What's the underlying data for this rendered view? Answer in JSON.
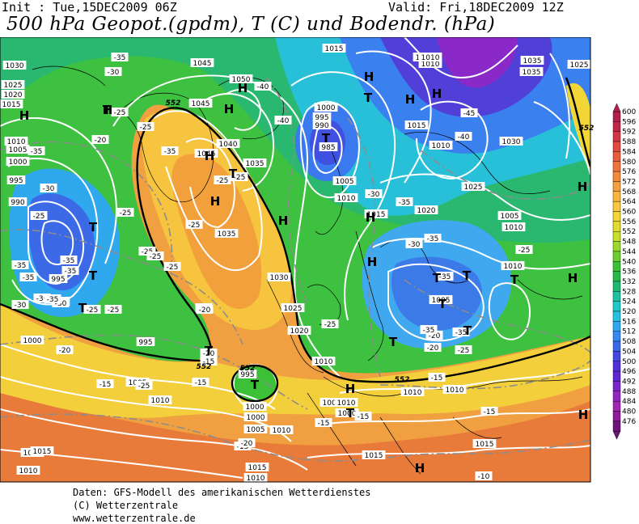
{
  "header": {
    "init": "Init : Tue,15DEC2009 06Z",
    "valid": "Valid: Fri,18DEC2009 12Z",
    "title": "500 hPa Geopot.(gpdm), T (C) und Bodendr. (hPa)"
  },
  "credits": {
    "line1": "Daten: GFS-Modell des amerikanischen Wetterdienstes",
    "line2": "(C) Wetterzentrale",
    "line3": "www.wetterzentrale.de"
  },
  "legend": {
    "ticks": [
      "600",
      "596",
      "592",
      "588",
      "584",
      "580",
      "576",
      "572",
      "568",
      "564",
      "560",
      "556",
      "552",
      "548",
      "544",
      "540",
      "536",
      "532",
      "528",
      "524",
      "520",
      "516",
      "512",
      "508",
      "504",
      "500",
      "496",
      "492",
      "488",
      "484",
      "480",
      "476"
    ],
    "colors": [
      "#b0204a",
      "#c02848",
      "#d03844",
      "#e04a40",
      "#e85e3c",
      "#ee743a",
      "#f28a3c",
      "#f5a040",
      "#f8b640",
      "#fac840",
      "#f2d638",
      "#e2dc30",
      "#c8e02c",
      "#9ad82c",
      "#6ccc30",
      "#3cc038",
      "#28b84a",
      "#20b870",
      "#20c0a0",
      "#20c8c8",
      "#28c0e0",
      "#30a8f0",
      "#3888f0",
      "#3c68e8",
      "#4448e0",
      "#5030d8",
      "#6028d0",
      "#7828c8",
      "#9028c0",
      "#a028b0",
      "#8c1c98",
      "#6c1478"
    ]
  },
  "map": {
    "pressure_labels": [
      {
        "t": "1030"
      },
      {
        "t": "1025"
      },
      {
        "t": "1020"
      },
      {
        "t": "1015"
      },
      {
        "t": "1010"
      },
      {
        "t": "1005"
      },
      {
        "t": "1000"
      },
      {
        "t": "995"
      },
      {
        "t": "990"
      },
      {
        "t": "995"
      },
      {
        "t": "990"
      },
      {
        "t": "1000"
      },
      {
        "t": "995"
      },
      {
        "t": "1005"
      },
      {
        "t": "1010"
      },
      {
        "t": "1015"
      },
      {
        "t": "1045"
      },
      {
        "t": "1050"
      },
      {
        "t": "1045"
      },
      {
        "t": "1045"
      },
      {
        "t": "1040"
      },
      {
        "t": "1035"
      },
      {
        "t": "1035"
      },
      {
        "t": "1030"
      },
      {
        "t": "1025"
      },
      {
        "t": "1020"
      },
      {
        "t": "1015"
      },
      {
        "t": "1010"
      },
      {
        "t": "1000"
      },
      {
        "t": "995"
      },
      {
        "t": "990"
      },
      {
        "t": "985"
      },
      {
        "t": "1005"
      },
      {
        "t": "1010"
      },
      {
        "t": "1015"
      },
      {
        "t": "1015"
      },
      {
        "t": "1010"
      },
      {
        "t": "1015"
      },
      {
        "t": "1010"
      },
      {
        "t": "1020"
      },
      {
        "t": "1025"
      },
      {
        "t": "1030"
      },
      {
        "t": "1035"
      },
      {
        "t": "1035"
      },
      {
        "t": "1025"
      },
      {
        "t": "1010"
      },
      {
        "t": "1005"
      },
      {
        "t": "1000"
      },
      {
        "t": "1010"
      },
      {
        "t": "1000"
      },
      {
        "t": "995"
      },
      {
        "t": "1000"
      },
      {
        "t": "1005"
      },
      {
        "t": "1010"
      },
      {
        "t": "1010"
      },
      {
        "t": "1015"
      },
      {
        "t": "1015"
      },
      {
        "t": "1010"
      },
      {
        "t": "1015"
      },
      {
        "t": "1010"
      },
      {
        "t": "1015"
      },
      {
        "t": "1010"
      },
      {
        "t": "1005"
      },
      {
        "t": "1010"
      },
      {
        "t": "1010"
      },
      {
        "t": "1005"
      }
    ],
    "temp_labels": [
      "-35",
      "-30",
      "-25",
      "-25",
      "-25",
      "-30",
      "-35",
      "-40",
      "-35",
      "-30",
      "-25",
      "-25",
      "-20",
      "-25",
      "-35",
      "-25",
      "-35",
      "-25",
      "-30",
      "-25",
      "-35",
      "-25",
      "-35",
      "-35",
      "-30",
      "-20",
      "-20",
      "-15",
      "-15",
      "-25",
      "-20",
      "-25",
      "-20",
      "-15",
      "-15",
      "-25",
      "-40",
      "-45",
      "-40",
      "-25",
      "-20",
      "-20",
      "-15",
      "-15",
      "-15",
      "-10",
      "-30",
      "-35",
      "-35",
      "-20",
      "-15",
      "-10",
      "-25",
      "-35",
      "-30",
      "-35",
      "-35",
      "-25"
    ],
    "markers": [
      {
        "t": "H",
        "name": "high-marker"
      },
      {
        "t": "H",
        "name": "high-marker"
      },
      {
        "t": "H",
        "name": "high-marker"
      },
      {
        "t": "H",
        "name": "high-marker"
      },
      {
        "t": "H",
        "name": "high-marker"
      },
      {
        "t": "H",
        "name": "high-marker"
      },
      {
        "t": "H",
        "name": "high-marker"
      },
      {
        "t": "H",
        "name": "high-marker"
      },
      {
        "t": "H",
        "name": "high-marker"
      },
      {
        "t": "H",
        "name": "high-marker"
      },
      {
        "t": "H",
        "name": "high-marker"
      },
      {
        "t": "H",
        "name": "high-marker"
      },
      {
        "t": "H",
        "name": "high-marker"
      },
      {
        "t": "H",
        "name": "high-marker"
      },
      {
        "t": "H",
        "name": "high-marker"
      },
      {
        "t": "H",
        "name": "high-marker"
      },
      {
        "t": "H",
        "name": "high-marker"
      },
      {
        "t": "T",
        "name": "low-marker"
      },
      {
        "t": "T",
        "name": "low-marker"
      },
      {
        "t": "T",
        "name": "low-marker"
      },
      {
        "t": "T",
        "name": "low-marker"
      },
      {
        "t": "T",
        "name": "low-marker"
      },
      {
        "t": "T",
        "name": "low-marker"
      },
      {
        "t": "T",
        "name": "low-marker"
      },
      {
        "t": "T",
        "name": "low-marker"
      },
      {
        "t": "T",
        "name": "low-marker"
      },
      {
        "t": "T",
        "name": "low-marker"
      },
      {
        "t": "T",
        "name": "low-marker"
      },
      {
        "t": "T",
        "name": "low-marker"
      },
      {
        "t": "T",
        "name": "low-marker"
      },
      {
        "t": "T",
        "name": "low-marker"
      },
      {
        "t": "T",
        "name": "low-marker"
      },
      {
        "t": "T",
        "name": "low-marker"
      }
    ],
    "contour_552_labels": [
      "552",
      "552",
      "552",
      "552",
      "552"
    ]
  }
}
